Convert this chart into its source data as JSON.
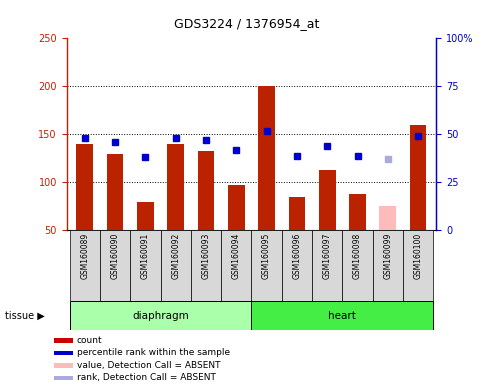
{
  "title": "GDS3224 / 1376954_at",
  "samples": [
    "GSM160089",
    "GSM160090",
    "GSM160091",
    "GSM160092",
    "GSM160093",
    "GSM160094",
    "GSM160095",
    "GSM160096",
    "GSM160097",
    "GSM160098",
    "GSM160099",
    "GSM160100"
  ],
  "count_values": [
    140,
    130,
    80,
    140,
    133,
    97,
    200,
    85,
    113,
    88,
    75,
    160
  ],
  "rank_values": [
    48,
    46,
    38,
    48,
    47,
    42,
    52,
    39,
    44,
    39,
    37,
    49
  ],
  "absent_mask": [
    false,
    false,
    false,
    false,
    false,
    false,
    false,
    false,
    false,
    false,
    true,
    false
  ],
  "ylim_left": [
    50,
    250
  ],
  "ylim_right": [
    0,
    100
  ],
  "yticks_left": [
    50,
    100,
    150,
    200,
    250
  ],
  "yticks_right": [
    0,
    25,
    50,
    75,
    100
  ],
  "bar_color_present": "#bb2200",
  "bar_color_absent": "#ffbbbb",
  "dot_color_present": "#0000cc",
  "dot_color_absent": "#aaaadd",
  "tick_area_bg": "#d8d8d8",
  "diaphragm_bg": "#aaffaa",
  "heart_bg": "#44ee44",
  "legend_items": [
    {
      "label": "count",
      "color": "#cc0000"
    },
    {
      "label": "percentile rank within the sample",
      "color": "#0000cc"
    },
    {
      "label": "value, Detection Call = ABSENT",
      "color": "#ffbbbb"
    },
    {
      "label": "rank, Detection Call = ABSENT",
      "color": "#aaaadd"
    }
  ]
}
